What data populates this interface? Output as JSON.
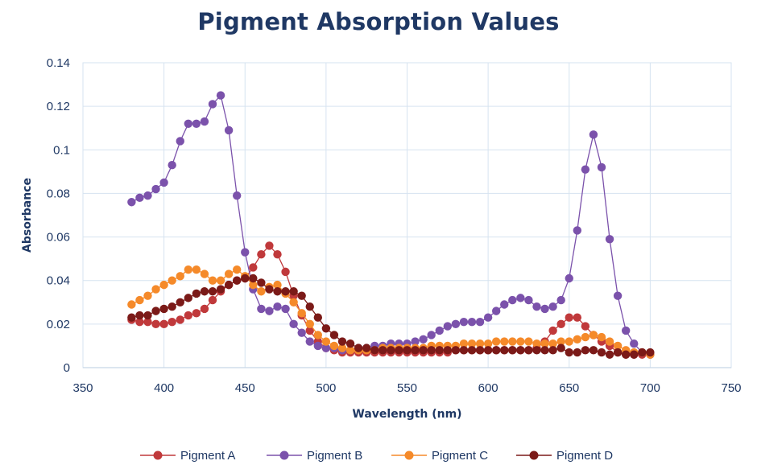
{
  "chart_data": {
    "type": "scatter",
    "title": "Pigment Absorption Values",
    "xlabel": "Wavelength (nm)",
    "ylabel": "Absorbance",
    "xlim": [
      350,
      750
    ],
    "ylim": [
      0,
      0.14
    ],
    "xticks": [
      350,
      400,
      450,
      500,
      550,
      600,
      650,
      700,
      750
    ],
    "yticks": [
      0,
      0.02,
      0.04,
      0.06,
      0.08,
      0.1,
      0.12,
      0.14
    ],
    "ytick_labels": [
      "0",
      "0.02",
      "0.04",
      "0.06",
      "0.08",
      "0.1",
      "0.12",
      "0.14"
    ],
    "grid": true,
    "legend_position": "bottom",
    "series": [
      {
        "name": "Pigment A",
        "color": "#c0393b",
        "x": [
          380,
          385,
          390,
          395,
          400,
          405,
          410,
          415,
          420,
          425,
          430,
          435,
          440,
          445,
          450,
          455,
          460,
          465,
          470,
          475,
          480,
          485,
          490,
          495,
          500,
          505,
          510,
          515,
          520,
          525,
          530,
          535,
          540,
          545,
          550,
          555,
          560,
          565,
          570,
          575,
          580,
          585,
          590,
          595,
          600,
          605,
          610,
          615,
          620,
          625,
          630,
          635,
          640,
          645,
          650,
          655,
          660,
          665,
          670,
          675,
          680,
          685,
          690,
          695,
          700
        ],
        "y": [
          0.022,
          0.021,
          0.021,
          0.02,
          0.02,
          0.021,
          0.022,
          0.024,
          0.025,
          0.027,
          0.031,
          0.035,
          0.038,
          0.04,
          0.041,
          0.046,
          0.052,
          0.056,
          0.052,
          0.044,
          0.033,
          0.024,
          0.017,
          0.012,
          0.009,
          0.008,
          0.007,
          0.007,
          0.007,
          0.007,
          0.007,
          0.007,
          0.007,
          0.007,
          0.007,
          0.007,
          0.007,
          0.007,
          0.007,
          0.007,
          0.008,
          0.008,
          0.008,
          0.008,
          0.008,
          0.008,
          0.008,
          0.008,
          0.008,
          0.008,
          0.009,
          0.012,
          0.017,
          0.02,
          0.023,
          0.023,
          0.019,
          0.015,
          0.012,
          0.01,
          0.007,
          0.006,
          0.006,
          0.006,
          0.006
        ]
      },
      {
        "name": "Pigment B",
        "color": "#7b52ab",
        "x": [
          380,
          385,
          390,
          395,
          400,
          405,
          410,
          415,
          420,
          425,
          430,
          435,
          440,
          445,
          450,
          455,
          460,
          465,
          470,
          475,
          480,
          485,
          490,
          495,
          500,
          505,
          510,
          515,
          520,
          525,
          530,
          535,
          540,
          545,
          550,
          555,
          560,
          565,
          570,
          575,
          580,
          585,
          590,
          595,
          600,
          605,
          610,
          615,
          620,
          625,
          630,
          635,
          640,
          645,
          650,
          655,
          660,
          665,
          670,
          675,
          680,
          685,
          690,
          695,
          700
        ],
        "y": [
          0.076,
          0.078,
          0.079,
          0.082,
          0.085,
          0.093,
          0.104,
          0.112,
          0.112,
          0.113,
          0.121,
          0.125,
          0.109,
          0.079,
          0.053,
          0.036,
          0.027,
          0.026,
          0.028,
          0.027,
          0.02,
          0.016,
          0.012,
          0.01,
          0.009,
          0.009,
          0.008,
          0.008,
          0.009,
          0.009,
          0.01,
          0.01,
          0.011,
          0.011,
          0.011,
          0.012,
          0.013,
          0.015,
          0.017,
          0.019,
          0.02,
          0.021,
          0.021,
          0.021,
          0.023,
          0.026,
          0.029,
          0.031,
          0.032,
          0.031,
          0.028,
          0.027,
          0.028,
          0.031,
          0.041,
          0.063,
          0.091,
          0.107,
          0.092,
          0.059,
          0.033,
          0.017,
          0.011,
          0.007,
          0.006
        ]
      },
      {
        "name": "Pigment C",
        "color": "#f58a2a",
        "x": [
          380,
          385,
          390,
          395,
          400,
          405,
          410,
          415,
          420,
          425,
          430,
          435,
          440,
          445,
          450,
          455,
          460,
          465,
          470,
          475,
          480,
          485,
          490,
          495,
          500,
          505,
          510,
          515,
          520,
          525,
          530,
          535,
          540,
          545,
          550,
          555,
          560,
          565,
          570,
          575,
          580,
          585,
          590,
          595,
          600,
          605,
          610,
          615,
          620,
          625,
          630,
          635,
          640,
          645,
          650,
          655,
          660,
          665,
          670,
          675,
          680,
          685,
          690,
          695,
          700
        ],
        "y": [
          0.029,
          0.031,
          0.033,
          0.036,
          0.038,
          0.04,
          0.042,
          0.045,
          0.045,
          0.043,
          0.04,
          0.04,
          0.043,
          0.045,
          0.042,
          0.038,
          0.035,
          0.037,
          0.038,
          0.034,
          0.03,
          0.025,
          0.02,
          0.015,
          0.012,
          0.01,
          0.009,
          0.008,
          0.008,
          0.008,
          0.008,
          0.009,
          0.009,
          0.009,
          0.009,
          0.009,
          0.009,
          0.01,
          0.01,
          0.01,
          0.01,
          0.011,
          0.011,
          0.011,
          0.011,
          0.012,
          0.012,
          0.012,
          0.012,
          0.012,
          0.011,
          0.011,
          0.011,
          0.012,
          0.012,
          0.013,
          0.014,
          0.015,
          0.014,
          0.012,
          0.01,
          0.008,
          0.007,
          0.007,
          0.006
        ]
      },
      {
        "name": "Pigment D",
        "color": "#7b1a18",
        "x": [
          380,
          385,
          390,
          395,
          400,
          405,
          410,
          415,
          420,
          425,
          430,
          435,
          440,
          445,
          450,
          455,
          460,
          465,
          470,
          475,
          480,
          485,
          490,
          495,
          500,
          505,
          510,
          515,
          520,
          525,
          530,
          535,
          540,
          545,
          550,
          555,
          560,
          565,
          570,
          575,
          580,
          585,
          590,
          595,
          600,
          605,
          610,
          615,
          620,
          625,
          630,
          635,
          640,
          645,
          650,
          655,
          660,
          665,
          670,
          675,
          680,
          685,
          690,
          695,
          700
        ],
        "y": [
          0.023,
          0.024,
          0.024,
          0.026,
          0.027,
          0.028,
          0.03,
          0.032,
          0.034,
          0.035,
          0.035,
          0.036,
          0.038,
          0.04,
          0.041,
          0.041,
          0.039,
          0.036,
          0.035,
          0.035,
          0.035,
          0.033,
          0.028,
          0.023,
          0.018,
          0.015,
          0.012,
          0.011,
          0.009,
          0.009,
          0.008,
          0.008,
          0.008,
          0.008,
          0.008,
          0.008,
          0.008,
          0.008,
          0.008,
          0.008,
          0.008,
          0.008,
          0.008,
          0.008,
          0.008,
          0.008,
          0.008,
          0.008,
          0.008,
          0.008,
          0.008,
          0.008,
          0.008,
          0.009,
          0.007,
          0.007,
          0.008,
          0.008,
          0.007,
          0.006,
          0.007,
          0.006,
          0.006,
          0.007,
          0.007
        ]
      }
    ]
  }
}
